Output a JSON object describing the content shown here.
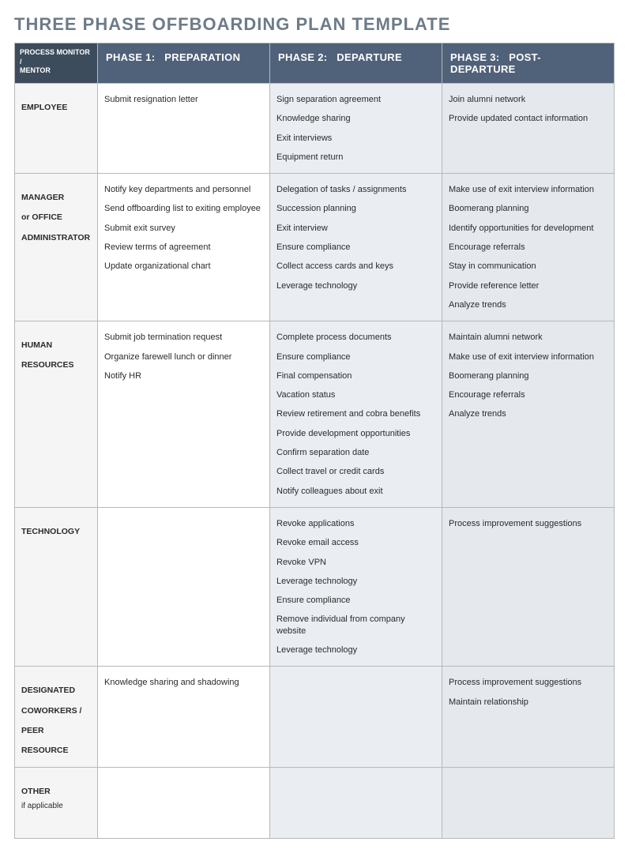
{
  "title": "THREE PHASE OFFBOARDING PLAN TEMPLATE",
  "header": {
    "col0_line1": "PROCESS MONITOR /",
    "col0_line2": "MENTOR",
    "phase1_num": "PHASE 1:",
    "phase1_label": "PREPARATION",
    "phase2_num": "PHASE 2:",
    "phase2_label": "DEPARTURE",
    "phase3_num": "PHASE 3:",
    "phase3_label": "POST-DEPARTURE"
  },
  "rows": [
    {
      "label_lines": [
        "EMPLOYEE"
      ],
      "sub": "",
      "p1": [
        "Submit resignation letter"
      ],
      "p2": [
        "Sign separation agreement",
        "Knowledge sharing",
        "Exit interviews",
        "Equipment return"
      ],
      "p3": [
        "Join alumni network",
        "Provide updated contact information"
      ]
    },
    {
      "label_lines": [
        "MANAGER",
        "or OFFICE",
        "ADMINISTRATOR"
      ],
      "sub": "",
      "p1": [
        "Notify key departments and personnel",
        "Send offboarding list to exiting employee",
        "Submit exit survey",
        "Review terms of agreement",
        "Update organizational chart"
      ],
      "p2": [
        "Delegation of tasks / assignments",
        "Succession planning",
        "Exit interview",
        "Ensure compliance",
        "Collect access cards and keys",
        "Leverage technology"
      ],
      "p3": [
        "Make use of exit interview information",
        "Boomerang planning",
        "Identify opportunities for development",
        "Encourage referrals",
        "Stay in communication",
        "Provide reference letter",
        "Analyze trends"
      ]
    },
    {
      "label_lines": [
        "HUMAN",
        "RESOURCES"
      ],
      "sub": "",
      "p1": [
        "Submit job termination request",
        "Organize farewell lunch or dinner",
        "Notify HR"
      ],
      "p2": [
        "Complete process documents",
        "Ensure compliance",
        "Final compensation",
        "Vacation status",
        "Review retirement and cobra benefits",
        "Provide development opportunities",
        "Confirm separation date",
        "Collect travel or credit cards",
        "Notify colleagues about exit"
      ],
      "p3": [
        "Maintain alumni network",
        "Make use of exit interview information",
        "Boomerang planning",
        "Encourage referrals",
        "Analyze trends"
      ]
    },
    {
      "label_lines": [
        "TECHNOLOGY"
      ],
      "sub": "",
      "p1": [],
      "p2": [
        "Revoke applications",
        "Revoke email access",
        "Revoke VPN",
        "Leverage technology",
        "Ensure compliance",
        "Remove individual from company website",
        "Leverage technology"
      ],
      "p3": [
        "Process improvement suggestions"
      ]
    },
    {
      "label_lines": [
        "DESIGNATED",
        "COWORKERS /",
        "PEER RESOURCE"
      ],
      "sub": "",
      "p1": [
        "Knowledge sharing and shadowing"
      ],
      "p2": [],
      "p3": [
        "Process improvement suggestions",
        "Maintain relationship"
      ],
      "minheight": 120
    },
    {
      "label_lines": [
        "OTHER"
      ],
      "sub": "if applicable",
      "p1": [],
      "p2": [],
      "p3": [],
      "minheight": 90
    }
  ],
  "colors": {
    "title": "#6e7b88",
    "corner_bg": "#3d4c5c",
    "phase_bg": "#50617a",
    "rowhdr_bg": "#f5f5f5",
    "p1_bg": "#ffffff",
    "p2_bg": "#eaedf2",
    "p3_bg": "#e5e8ed",
    "border": "#b8b8b8"
  }
}
